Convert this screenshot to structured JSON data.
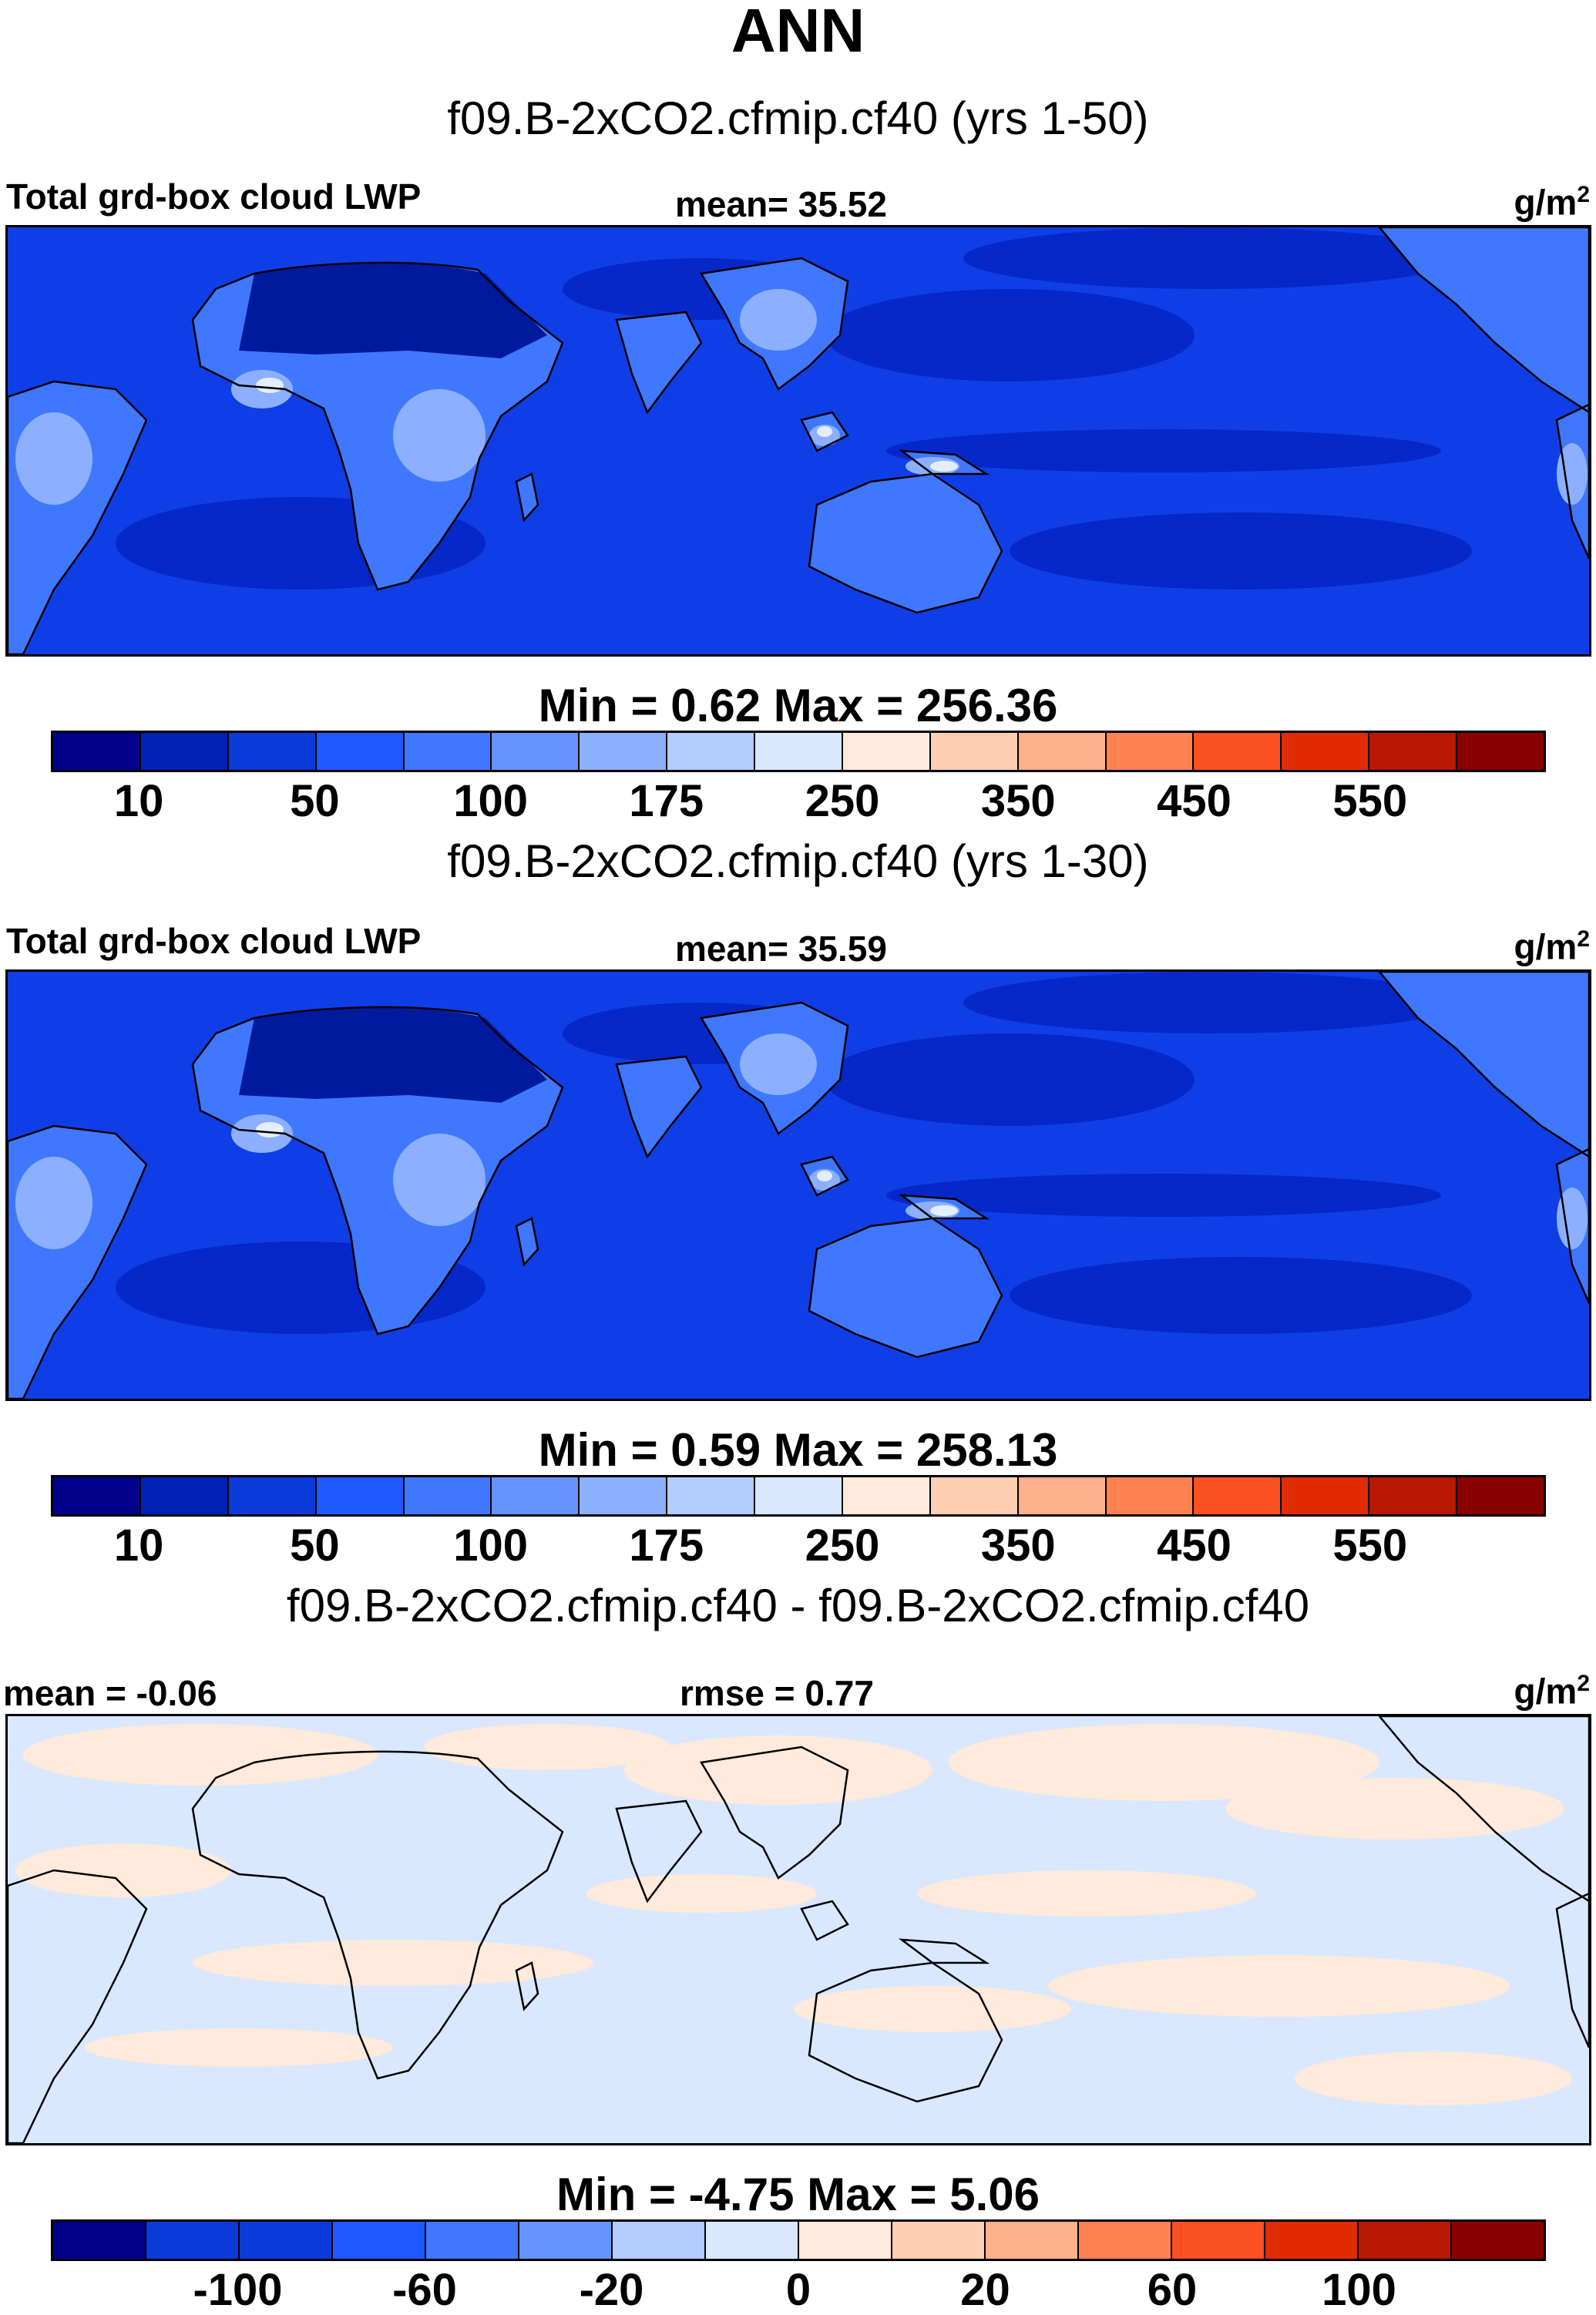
{
  "title": "ANN",
  "units": "g/m",
  "units_exp": "2",
  "panels": [
    {
      "subtitle": "f09.B-2xCO2.cfmip.cf40 (yrs 1-50)",
      "left_label": "Total grd-box cloud LWP",
      "center_label": "mean=  35.52",
      "minmax": "Min =    0.62 Max = 256.36",
      "colorbar": {
        "colors": [
          "#00008c",
          "#0022b4",
          "#0a3ad8",
          "#1f5aff",
          "#3f78ff",
          "#6694ff",
          "#8cb0ff",
          "#b2ccff",
          "#d9e8ff",
          "#ffeadb",
          "#ffcfb4",
          "#ffb08c",
          "#ff8352",
          "#fb5020",
          "#e02c00",
          "#b81800",
          "#8a0000"
        ],
        "tick_labels": [
          "10",
          "50",
          "100",
          "175",
          "250",
          "350",
          "450",
          "550"
        ]
      }
    },
    {
      "subtitle": "f09.B-2xCO2.cfmip.cf40 (yrs 1-30)",
      "left_label": "Total grd-box cloud LWP",
      "center_label": "mean=  35.59",
      "minmax": "Min =    0.59 Max = 258.13",
      "colorbar": {
        "colors": [
          "#00008c",
          "#0022b4",
          "#0a3ad8",
          "#1f5aff",
          "#3f78ff",
          "#6694ff",
          "#8cb0ff",
          "#b2ccff",
          "#d9e8ff",
          "#ffeadb",
          "#ffcfb4",
          "#ffb08c",
          "#ff8352",
          "#fb5020",
          "#e02c00",
          "#b81800",
          "#8a0000"
        ],
        "tick_labels": [
          "10",
          "50",
          "100",
          "175",
          "250",
          "350",
          "450",
          "550"
        ]
      }
    },
    {
      "subtitle": "f09.B-2xCO2.cfmip.cf40 - f09.B-2xCO2.cfmip.cf40",
      "left_label": "mean =  -0.06",
      "center_label": "rmse =   0.77",
      "minmax": "Min =  -4.75 Max =    5.06",
      "colorbar": {
        "colors": [
          "#00008c",
          "#0a3ad8",
          "#0a3ad8",
          "#1f5aff",
          "#3f78ff",
          "#6694ff",
          "#b2ccff",
          "#d9e8ff",
          "#ffeadb",
          "#ffcfb4",
          "#ffb08c",
          "#ff8352",
          "#fb5020",
          "#e02c00",
          "#b81800",
          "#8a0000"
        ],
        "tick_labels": [
          "-100",
          "-60",
          "-20",
          "0",
          "20",
          "60",
          "100"
        ]
      }
    }
  ],
  "colors": {
    "ocean_base": "#0f3ee6",
    "ocean_dark": "#0628c8",
    "land_dark": "#001a9e",
    "land_light": "#3f78ff",
    "land_lighter": "#8cb0ff",
    "land_white": "#e4eeff",
    "diff_blue": "#d9e8ff",
    "diff_peach": "#ffeadb"
  }
}
